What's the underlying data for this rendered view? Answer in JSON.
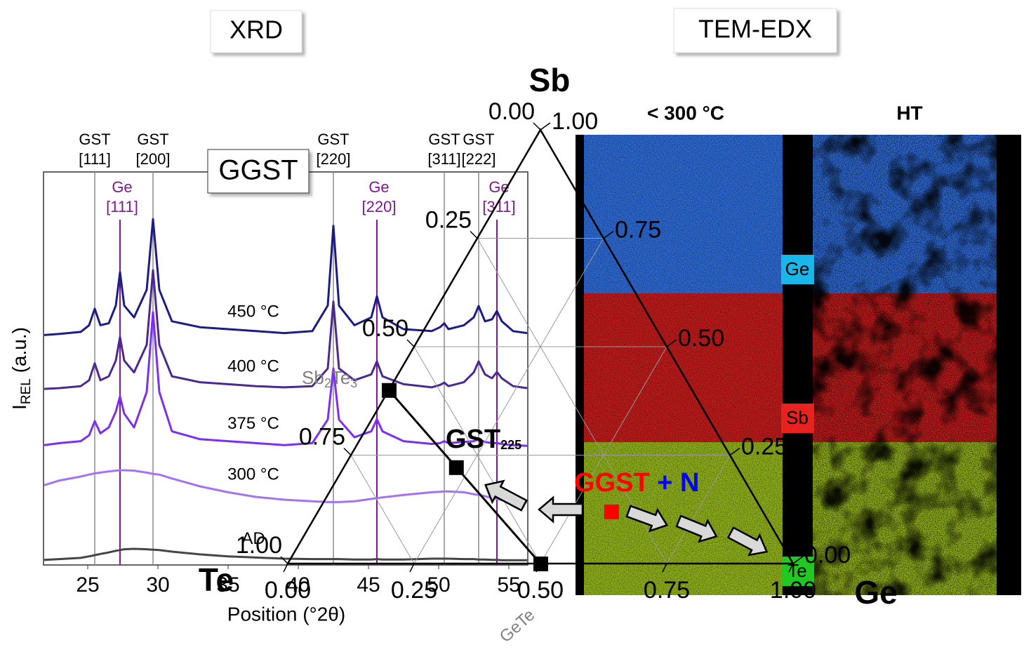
{
  "panels": {
    "left": "XRD",
    "right": "TEM-EDX"
  },
  "chart_data": [
    {
      "type": "line",
      "label": "GGST",
      "x_label": "Position (°2θ)",
      "y_label": {
        "main": "I",
        "sub": "REL",
        "rest": " (a.u.)"
      },
      "xlim": [
        21.85,
        56.35
      ],
      "xticks": [
        25,
        30,
        35,
        40,
        45,
        50,
        55
      ],
      "ylim": [
        0,
        100
      ],
      "x": [
        21.9,
        23,
        24.5,
        25.1,
        25.5,
        25.9,
        26.5,
        27,
        27.3,
        27.6,
        28.3,
        29.2,
        29.65,
        30.1,
        31,
        33,
        35,
        37,
        39,
        41,
        42.1,
        42.5,
        42.9,
        44,
        45.2,
        45.6,
        46,
        47.5,
        49.5,
        50.1,
        50.4,
        50.7,
        51.8,
        52.5,
        52.85,
        53.3,
        53.8,
        54.15,
        54.5,
        55.3,
        56.3
      ],
      "series": [
        {
          "name": "450 °C",
          "color": "#1c1c82",
          "values": [
            58.5,
            58.8,
            59.3,
            61,
            65.2,
            61,
            61.5,
            66,
            74.5,
            66,
            63,
            70,
            88,
            70,
            62,
            60.5,
            60,
            59.5,
            59,
            59.5,
            66,
            86.3,
            66,
            61,
            63,
            68.4,
            63,
            60,
            59.5,
            60.5,
            61.5,
            60,
            61,
            63,
            65.9,
            62,
            62.5,
            64.6,
            62,
            59.5,
            59
          ]
        },
        {
          "name": "400 °C",
          "color": "#4a2a8e",
          "values": [
            44.8,
            45,
            45.5,
            47,
            51.3,
            47,
            48,
            52,
            58,
            52,
            49,
            56,
            75,
            56,
            48,
            46.5,
            46,
            45.5,
            45.2,
            45.5,
            50,
            67,
            50,
            47,
            48.5,
            51.8,
            48,
            46,
            45.2,
            45.8,
            46.4,
            45.5,
            46.5,
            49,
            51.8,
            48.5,
            47.5,
            49.1,
            47.5,
            45.5,
            45
          ]
        },
        {
          "name": "375 °C",
          "color": "#7b2ff0",
          "values": [
            30.5,
            31,
            31.5,
            33,
            36.6,
            33.5,
            35,
            39,
            42.9,
            38.5,
            35,
            44,
            64.3,
            44,
            34,
            32,
            31.5,
            31,
            30.5,
            31,
            37,
            50,
            37,
            32.5,
            34,
            37.1,
            34,
            31.5,
            30.8,
            31,
            31.5,
            31,
            31.3,
            31.5,
            32,
            31.3,
            31,
            31,
            30.8,
            30.5,
            30.3
          ]
        },
        {
          "name": "300 °C",
          "color": "#a273f2",
          "values": [
            20.3,
            21.5,
            22.5,
            23,
            23.3,
            23.5,
            23.8,
            24,
            24.1,
            24.1,
            24,
            23.5,
            23.2,
            23,
            22,
            20,
            18.5,
            17.3,
            16.6,
            16.2,
            16,
            16,
            16,
            16.2,
            16.8,
            17,
            17.2,
            17.8,
            18.5,
            18.6,
            18.7,
            18.7,
            18.5,
            18,
            17.8,
            17.5,
            17,
            16.8,
            16.5,
            16.2,
            16
          ]
        },
        {
          "name": "AD",
          "color": "#454545",
          "values": [
            1.3,
            1.5,
            1.8,
            2.2,
            2.5,
            2.8,
            3.2,
            3.6,
            3.8,
            4,
            4.1,
            4,
            3.9,
            3.8,
            3.4,
            2.7,
            2.2,
            1.9,
            1.6,
            1.5,
            1.5,
            1.5,
            1.5,
            1.4,
            1.4,
            1.5,
            1.4,
            1.4,
            1.6,
            1.6,
            1.6,
            1.6,
            1.5,
            1.5,
            1.4,
            1.4,
            1.3,
            1.3,
            1.2,
            1.2,
            1.2
          ]
        }
      ],
      "phase_lines": [
        {
          "x": 25.5,
          "label": [
            "GST",
            "[111]"
          ],
          "color": "#8c8c8c"
        },
        {
          "x": 29.65,
          "label": [
            "GST",
            "[200]"
          ],
          "color": "#8c8c8c"
        },
        {
          "x": 42.5,
          "label": [
            "GST",
            "[220]"
          ],
          "color": "#8c8c8c"
        },
        {
          "x": 50.4,
          "label": [
            "GST",
            "[311]"
          ],
          "color": "#8c8c8c"
        },
        {
          "x": 52.85,
          "label": [
            "GST",
            "[222]"
          ],
          "color": "#8c8c8c"
        }
      ],
      "element_lines": [
        {
          "x": 27.3,
          "label": [
            "Ge",
            "[111]"
          ],
          "color": "#7a1a8c"
        },
        {
          "x": 45.6,
          "label": [
            "Ge",
            "[220]"
          ],
          "color": "#7a1a8c"
        },
        {
          "x": 54.15,
          "label": [
            "Ge",
            "[311]"
          ],
          "color": "#7a1a8c"
        }
      ]
    },
    {
      "type": "ternary",
      "vertices": {
        "top": "Sb",
        "left": "Te",
        "right": "Ge"
      },
      "te_ticks": [
        {
          "value": 0,
          "label": "0.00"
        },
        {
          "value": 0.25,
          "label": "0.25"
        },
        {
          "value": 0.5,
          "label": "0.50"
        },
        {
          "value": 0.75,
          "label": "0.75"
        },
        {
          "value": 1,
          "label": "1.00"
        }
      ],
      "sb_ticks": [
        {
          "value": 0,
          "label": "0.00"
        },
        {
          "value": 0.25,
          "label": "0.25"
        },
        {
          "value": 0.5,
          "label": "0.50"
        },
        {
          "value": 0.75,
          "label": "0.75"
        },
        {
          "value": 1,
          "label": "1.00"
        }
      ],
      "ge_ticks": [
        {
          "value": 0,
          "label": "0.00"
        },
        {
          "value": 0.25,
          "label": "0.25"
        },
        {
          "value": 0.5,
          "label": "0.50"
        },
        {
          "value": 0.75,
          "label": "0.75"
        },
        {
          "value": 1,
          "label": "1.00"
        }
      ],
      "points": [
        {
          "label": "Sb2Te3",
          "sb": 0.4,
          "te": 0.6,
          "ge": 0,
          "color": "#000000"
        },
        {
          "label": "GST225",
          "sb": 0.222,
          "te": 0.556,
          "ge": 0.222,
          "color": "#000000"
        },
        {
          "label": "GeTe",
          "sb": 0,
          "te": 0.5,
          "ge": 0.5,
          "color": "#000000"
        },
        {
          "label_parts": [
            {
              "text": "GGST",
              "color": "#ff0000"
            },
            {
              "text": " + N",
              "color": "#0000ff"
            }
          ],
          "sb": 0.12,
          "te": 0.3,
          "ge": 0.58,
          "color": "#ff0000"
        }
      ]
    }
  ],
  "edx": {
    "columns": [
      "< 300 °C",
      "HT"
    ],
    "elements": [
      {
        "name": "Ge",
        "color": "#2f6cd8",
        "label_color": "#19b6ea"
      },
      {
        "name": "Sb",
        "color": "#c41c1c",
        "label_color": "#e8221e"
      },
      {
        "name": "Te",
        "color": "#93b41c",
        "label_color": "#21c821"
      }
    ]
  }
}
